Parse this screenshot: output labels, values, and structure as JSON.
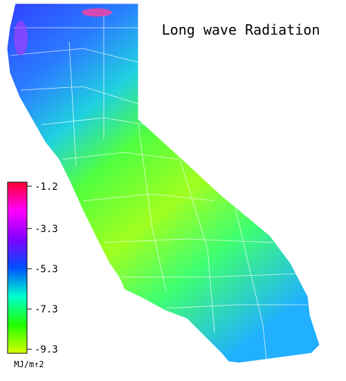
{
  "title": "Long wave Radiation",
  "colorbar": {
    "ticks": [
      -1.2,
      -3.3,
      -5.3,
      -7.3,
      -9.3
    ],
    "lim": [
      -9.5,
      -1.0
    ],
    "colors": [
      "#d8ff00",
      "#20ff00",
      "#00ffd0",
      "#0050ff",
      "#8000ff",
      "#ff00ff",
      "#ff0030"
    ],
    "unit": "MJ/m↑2"
  }
}
